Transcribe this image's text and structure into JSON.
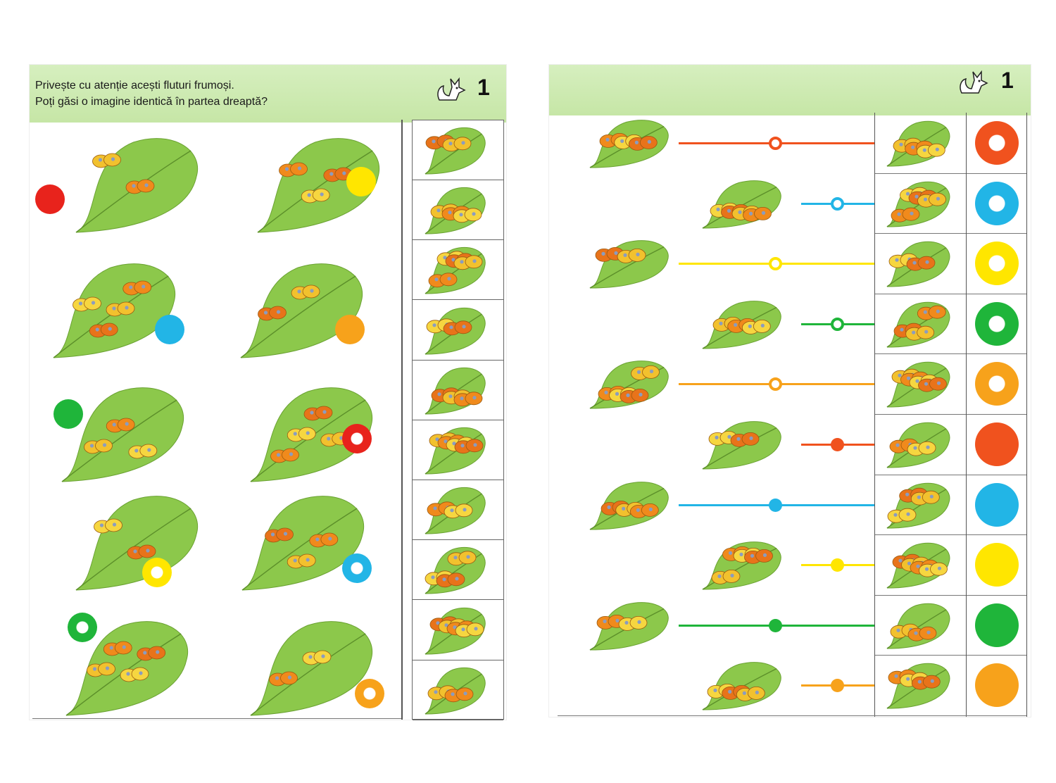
{
  "left_page": {
    "instruction_line1": "Privește cu atenție acești fluturi frumoși.",
    "instruction_line2": "Poți găsi o imagine identică în partea dreaptă?",
    "page_number": "1",
    "fox_icon": "fox-icon",
    "main_items": [
      {
        "dot_color": "#e8231c",
        "dot_style": "solid"
      },
      {
        "dot_color": "#ffe600",
        "dot_style": "solid"
      },
      {
        "dot_color": "#22b5e6",
        "dot_style": "solid"
      },
      {
        "dot_color": "#f7a21b",
        "dot_style": "solid"
      },
      {
        "dot_color": "#1fb53a",
        "dot_style": "solid"
      },
      {
        "dot_color": "#e8231c",
        "dot_style": "ring"
      },
      {
        "dot_color": "#ffe600",
        "dot_style": "ring"
      },
      {
        "dot_color": "#22b5e6",
        "dot_style": "ring"
      },
      {
        "dot_color": "#1fb53a",
        "dot_style": "ring"
      },
      {
        "dot_color": "#f7a21b",
        "dot_style": "ring"
      }
    ],
    "side_cells": 10
  },
  "right_page": {
    "page_number": "1",
    "fox_icon": "fox-icon",
    "rows": [
      {
        "color": "#f0521e",
        "knob": "ring"
      },
      {
        "color": "#22b5e6",
        "knob": "ring"
      },
      {
        "color": "#ffe600",
        "knob": "ring"
      },
      {
        "color": "#1fb53a",
        "knob": "ring"
      },
      {
        "color": "#f7a21b",
        "knob": "ring"
      },
      {
        "color": "#f0521e",
        "knob": "solid"
      },
      {
        "color": "#22b5e6",
        "knob": "solid"
      },
      {
        "color": "#ffe600",
        "knob": "solid"
      },
      {
        "color": "#1fb53a",
        "knob": "solid"
      },
      {
        "color": "#f7a21b",
        "knob": "solid"
      }
    ]
  }
}
